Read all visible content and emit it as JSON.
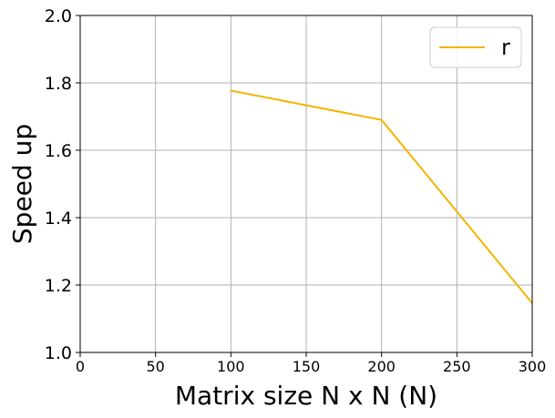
{
  "chart_data": {
    "type": "line",
    "title": "",
    "xlabel": "Matrix size N x N (N)",
    "ylabel": "Speed up",
    "xlim": [
      0,
      300
    ],
    "ylim": [
      1.0,
      2.0
    ],
    "xticks": [
      0,
      50,
      100,
      150,
      200,
      250,
      300
    ],
    "yticks": [
      1.0,
      1.2,
      1.4,
      1.6,
      1.8,
      2.0
    ],
    "xtick_labels": [
      "0",
      "50",
      "100",
      "150",
      "200",
      "250",
      "300"
    ],
    "ytick_labels": [
      "1.0",
      "1.2",
      "1.4",
      "1.6",
      "1.8",
      "2.0"
    ],
    "grid": true,
    "legend_position": "top-right",
    "series": [
      {
        "name": "r",
        "color": "#f5b400",
        "x": [
          100,
          200,
          300
        ],
        "y": [
          1.777,
          1.69,
          1.146
        ]
      }
    ]
  }
}
